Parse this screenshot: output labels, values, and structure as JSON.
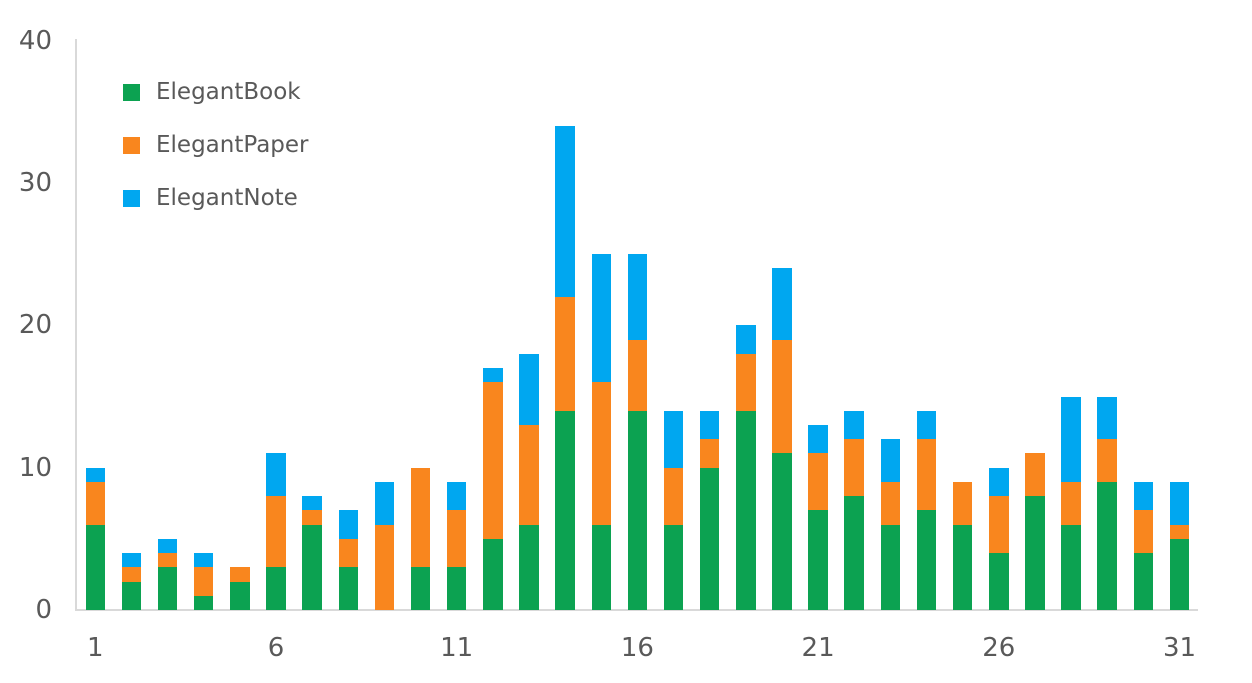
{
  "chart_data": {
    "type": "bar",
    "stacked": true,
    "title": "",
    "xlabel": "",
    "ylabel": "",
    "categories": [
      1,
      2,
      3,
      4,
      5,
      6,
      7,
      8,
      9,
      10,
      11,
      12,
      13,
      14,
      15,
      16,
      17,
      18,
      19,
      20,
      21,
      22,
      23,
      24,
      25,
      26,
      27,
      28,
      29,
      30,
      31
    ],
    "series": [
      {
        "name": "ElegantBook",
        "color": "#0ca251",
        "values": [
          6,
          2,
          3,
          1,
          2,
          3,
          6,
          3,
          0,
          3,
          3,
          5,
          6,
          14,
          6,
          14,
          6,
          10,
          14,
          11,
          7,
          8,
          6,
          7,
          6,
          4,
          8,
          6,
          9,
          4,
          5
        ]
      },
      {
        "name": "ElegantPaper",
        "color": "#f9861e",
        "values": [
          3,
          1,
          1,
          2,
          1,
          5,
          1,
          2,
          6,
          7,
          4,
          11,
          7,
          8,
          10,
          5,
          4,
          2,
          4,
          8,
          4,
          4,
          3,
          5,
          3,
          4,
          3,
          3,
          3,
          3,
          1
        ]
      },
      {
        "name": "ElegantNote",
        "color": "#00a7f0",
        "values": [
          1,
          1,
          1,
          1,
          0,
          3,
          1,
          2,
          3,
          0,
          2,
          1,
          5,
          12,
          9,
          6,
          4,
          2,
          2,
          5,
          2,
          2,
          3,
          2,
          0,
          2,
          0,
          6,
          3,
          2,
          3
        ]
      }
    ],
    "ylim": [
      0,
      40
    ],
    "yticks": [
      0,
      10,
      20,
      30,
      40
    ],
    "xticks": [
      1,
      6,
      11,
      16,
      21,
      26,
      31
    ],
    "legend_position": "top-left",
    "grid": false
  },
  "style": {
    "axis_line_color": "#d9d9d9",
    "tick_text_color": "#595959",
    "legend_text_color": "#595959",
    "background_color": "#ffffff"
  }
}
